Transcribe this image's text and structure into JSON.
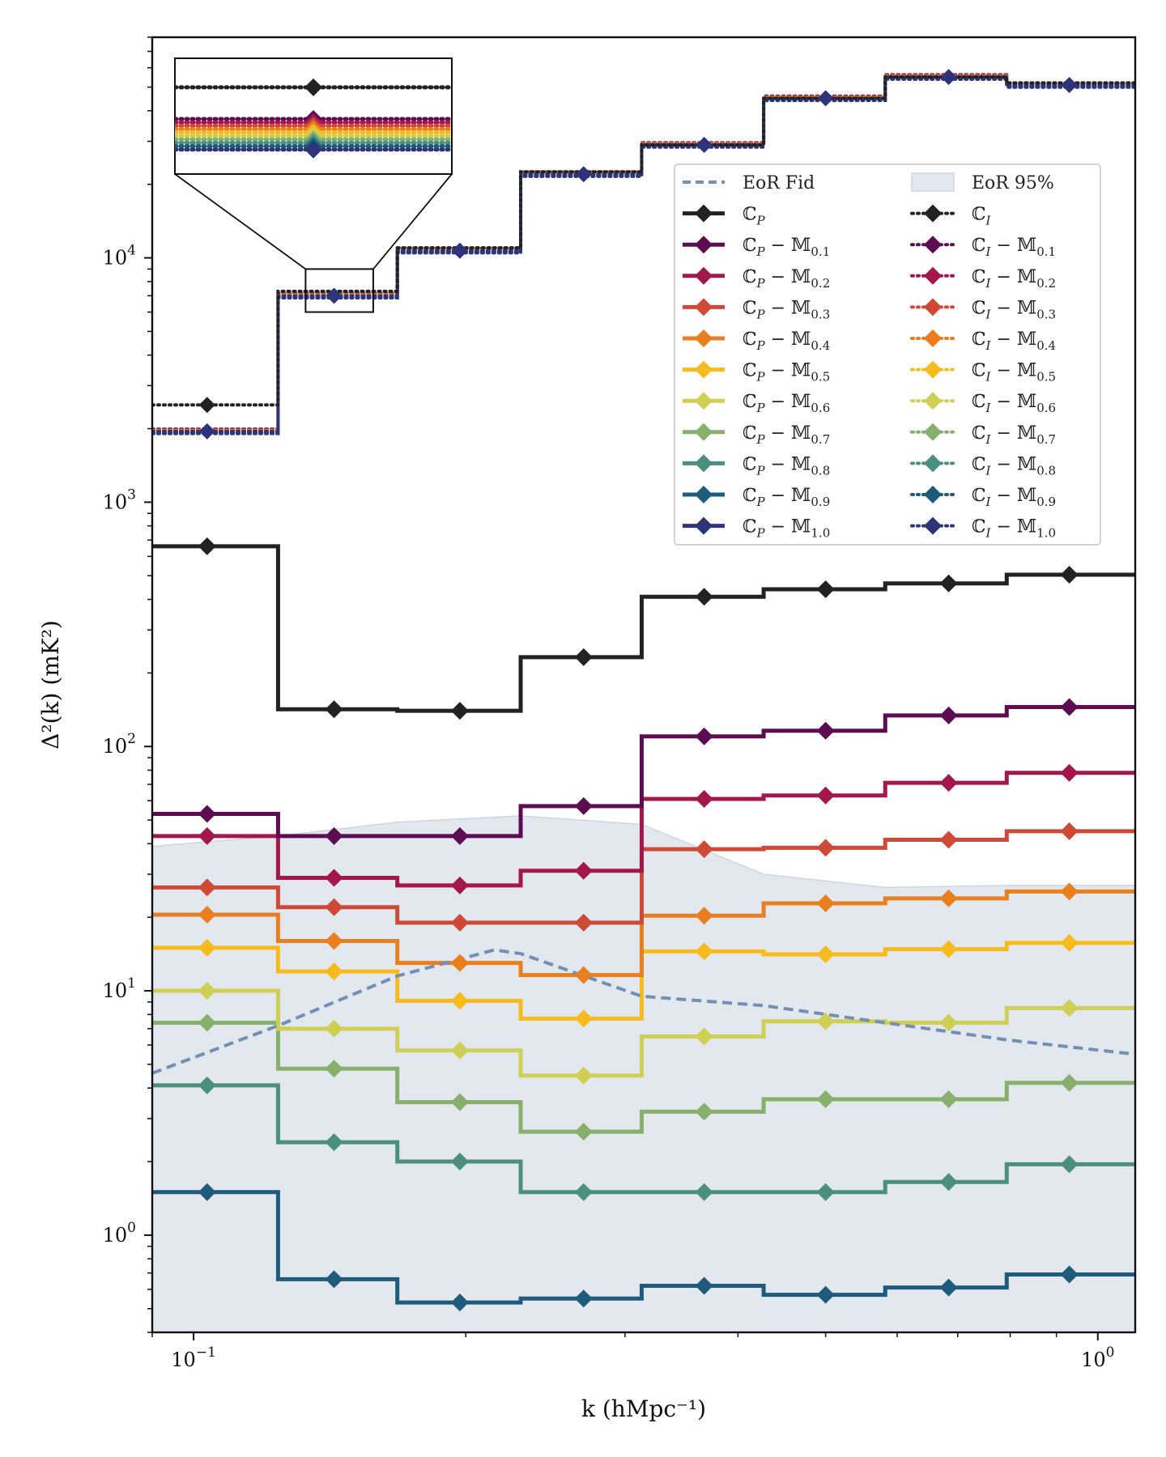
{
  "chart_data": {
    "type": "line",
    "xscale": "log",
    "yscale": "log",
    "xlabel": "k (hMpc⁻¹)",
    "ylabel": "Δ²(k) (mK²)",
    "xlim": [
      0.09,
      1.1
    ],
    "ylim": [
      0.4,
      80000
    ],
    "x_ticks": [
      {
        "value": 0.1,
        "base": "10",
        "exp": "−1"
      },
      {
        "value": 1.0,
        "base": "10",
        "exp": "0"
      }
    ],
    "y_ticks": [
      {
        "value": 1,
        "base": "10",
        "exp": "0"
      },
      {
        "value": 10,
        "base": "10",
        "exp": "1"
      },
      {
        "value": 100,
        "base": "10",
        "exp": "2"
      },
      {
        "value": 1000,
        "base": "10",
        "exp": "3"
      },
      {
        "value": 10000,
        "base": "10",
        "exp": "4"
      }
    ],
    "bin_edges": [
      0.09,
      0.124,
      0.168,
      0.23,
      0.313,
      0.427,
      0.582,
      0.793,
      1.1
    ],
    "bin_centers": [
      0.1035,
      0.143,
      0.197,
      0.27,
      0.367,
      0.5,
      0.684,
      0.93
    ],
    "colors": {
      "C_P": "#222222",
      "C_I": "#222222",
      "M0.1": "#5e0c52",
      "M0.2": "#a3174c",
      "M0.3": "#cf4a36",
      "M0.4": "#e97f1f",
      "M0.5": "#f7bb1e",
      "M0.6": "#cfcf56",
      "M0.7": "#86b06c",
      "M0.8": "#4a8f7f",
      "M0.9": "#1f5c7c",
      "M1.0": "#2e3479",
      "eor_fid": "#7390b4",
      "eor_band": "#e3e8ef"
    },
    "series": [
      {
        "name": "C_P",
        "values": [
          660,
          142,
          140,
          232,
          410,
          440,
          465,
          505
        ]
      },
      {
        "name": "C_P − M0.1",
        "values": [
          53,
          43,
          43,
          57,
          110,
          116,
          134,
          145
        ]
      },
      {
        "name": "C_P − M0.2",
        "values": [
          43,
          29,
          27,
          31,
          61,
          63,
          71,
          78
        ]
      },
      {
        "name": "C_P − M0.3",
        "values": [
          26.5,
          22,
          19,
          19,
          38,
          38.5,
          41.5,
          45
        ]
      },
      {
        "name": "C_P − M0.4",
        "values": [
          20.5,
          16,
          13,
          11.6,
          20.3,
          22.8,
          23.9,
          25.5
        ]
      },
      {
        "name": "C_P − M0.5",
        "values": [
          15,
          12,
          9.1,
          7.7,
          14.5,
          14.1,
          14.8,
          15.7
        ]
      },
      {
        "name": "C_P − M0.6",
        "values": [
          10,
          7,
          5.7,
          4.5,
          6.5,
          7.5,
          7.4,
          8.5
        ]
      },
      {
        "name": "C_P − M0.7",
        "values": [
          7.4,
          4.8,
          3.5,
          2.65,
          3.2,
          3.6,
          3.6,
          4.2
        ]
      },
      {
        "name": "C_P − M0.8",
        "values": [
          4.1,
          2.4,
          2,
          1.5,
          1.5,
          1.5,
          1.65,
          1.95
        ]
      },
      {
        "name": "C_P − M0.9",
        "values": [
          1.5,
          0.66,
          0.53,
          0.55,
          0.62,
          0.57,
          0.61,
          0.69
        ]
      },
      {
        "name": "C_I",
        "values": [
          2500,
          7300,
          11000,
          22500,
          29000,
          45000,
          55000,
          52000
        ]
      },
      {
        "name": "C_I − M (0.1–1.0)",
        "values": [
          1950,
          7000,
          10700,
          22000,
          29000,
          45000,
          55000,
          51000
        ]
      }
    ],
    "eor_fid": {
      "x": [
        0.09,
        0.124,
        0.168,
        0.215,
        0.23,
        0.313,
        0.427,
        0.582,
        0.793,
        1.1
      ],
      "y": [
        4.6,
        7.2,
        11.5,
        14.7,
        14.2,
        9.5,
        8.7,
        7.4,
        6.3,
        5.5
      ]
    },
    "eor_band": {
      "x": [
        0.09,
        0.124,
        0.168,
        0.23,
        0.313,
        0.427,
        0.582,
        0.793,
        1.1
      ],
      "y": [
        39,
        43,
        49,
        52,
        48,
        30,
        26.5,
        27,
        27
      ]
    },
    "legend": {
      "placement": "upper right",
      "columns": 2,
      "entries": [
        {
          "text": "EoR Fid",
          "kind": "dashed",
          "color_key": "eor_fid"
        },
        {
          "text": "EoR 95%",
          "kind": "patch",
          "color_key": "eor_band"
        },
        {
          "text": "ℂP",
          "kind": "solid",
          "color_key": "C_P",
          "base": "ℂ",
          "sub": "P",
          "m": ""
        },
        {
          "text": "ℂI",
          "kind": "dotted",
          "color_key": "C_I",
          "base": "ℂ",
          "sub": "I",
          "m": ""
        },
        {
          "text": "ℂP − 𝕄0.1",
          "kind": "solid",
          "color_key": "M0.1",
          "base": "ℂ",
          "sub": "P",
          "m": "0.1"
        },
        {
          "text": "ℂI − 𝕄0.1",
          "kind": "dotted",
          "color_key": "M0.1",
          "base": "ℂ",
          "sub": "I",
          "m": "0.1"
        },
        {
          "text": "ℂP − 𝕄0.2",
          "kind": "solid",
          "color_key": "M0.2",
          "base": "ℂ",
          "sub": "P",
          "m": "0.2"
        },
        {
          "text": "ℂI − 𝕄0.2",
          "kind": "dotted",
          "color_key": "M0.2",
          "base": "ℂ",
          "sub": "I",
          "m": "0.2"
        },
        {
          "text": "ℂP − 𝕄0.3",
          "kind": "solid",
          "color_key": "M0.3",
          "base": "ℂ",
          "sub": "P",
          "m": "0.3"
        },
        {
          "text": "ℂI − 𝕄0.3",
          "kind": "dotted",
          "color_key": "M0.3",
          "base": "ℂ",
          "sub": "I",
          "m": "0.3"
        },
        {
          "text": "ℂP − 𝕄0.4",
          "kind": "solid",
          "color_key": "M0.4",
          "base": "ℂ",
          "sub": "P",
          "m": "0.4"
        },
        {
          "text": "ℂI − 𝕄0.4",
          "kind": "dotted",
          "color_key": "M0.4",
          "base": "ℂ",
          "sub": "I",
          "m": "0.4"
        },
        {
          "text": "ℂP − 𝕄0.5",
          "kind": "solid",
          "color_key": "M0.5",
          "base": "ℂ",
          "sub": "P",
          "m": "0.5"
        },
        {
          "text": "ℂI − 𝕄0.5",
          "kind": "dotted",
          "color_key": "M0.5",
          "base": "ℂ",
          "sub": "I",
          "m": "0.5"
        },
        {
          "text": "ℂP − 𝕄0.6",
          "kind": "solid",
          "color_key": "M0.6",
          "base": "ℂ",
          "sub": "P",
          "m": "0.6"
        },
        {
          "text": "ℂI − 𝕄0.6",
          "kind": "dotted",
          "color_key": "M0.6",
          "base": "ℂ",
          "sub": "I",
          "m": "0.6"
        },
        {
          "text": "ℂP − 𝕄0.7",
          "kind": "solid",
          "color_key": "M0.7",
          "base": "ℂ",
          "sub": "P",
          "m": "0.7"
        },
        {
          "text": "ℂI − 𝕄0.7",
          "kind": "dotted",
          "color_key": "M0.7",
          "base": "ℂ",
          "sub": "I",
          "m": "0.7"
        },
        {
          "text": "ℂP − 𝕄0.8",
          "kind": "solid",
          "color_key": "M0.8",
          "base": "ℂ",
          "sub": "P",
          "m": "0.8"
        },
        {
          "text": "ℂI − 𝕄0.8",
          "kind": "dotted",
          "color_key": "M0.8",
          "base": "ℂ",
          "sub": "I",
          "m": "0.8"
        },
        {
          "text": "ℂP − 𝕄0.9",
          "kind": "solid",
          "color_key": "M0.9",
          "base": "ℂ",
          "sub": "P",
          "m": "0.9"
        },
        {
          "text": "ℂI − 𝕄0.9",
          "kind": "dotted",
          "color_key": "M0.9",
          "base": "ℂ",
          "sub": "I",
          "m": "0.9"
        },
        {
          "text": "ℂP − 𝕄1.0",
          "kind": "solid",
          "color_key": "M1.0",
          "base": "ℂ",
          "sub": "P",
          "m": "1.0"
        },
        {
          "text": "ℂI − 𝕄1.0",
          "kind": "dotted",
          "color_key": "M1.0",
          "base": "ℂ",
          "sub": "I",
          "m": "1.0"
        }
      ]
    },
    "inset": {
      "description_of": "zoom of second bin",
      "x_range": [
        0.133,
        0.158
      ],
      "y_range": [
        6000,
        9000
      ]
    }
  }
}
